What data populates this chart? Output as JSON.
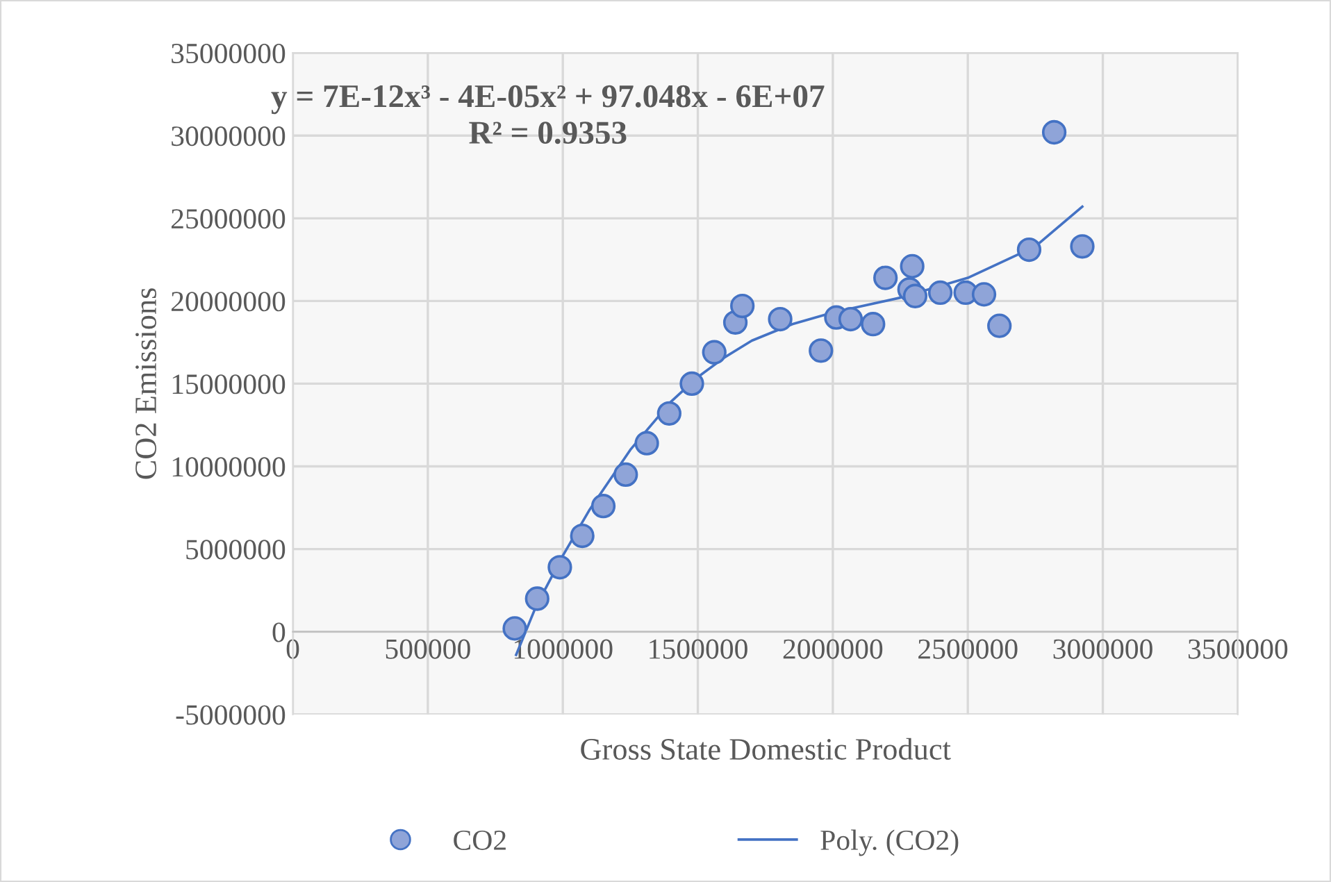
{
  "chart_data": {
    "type": "scatter",
    "xlabel": "Gross State Domestic Product",
    "ylabel": "CO2 Emissions",
    "xlim": [
      0,
      3500000
    ],
    "xticks": [
      0,
      500000,
      1000000,
      1500000,
      2000000,
      2500000,
      3000000,
      3500000
    ],
    "ylim": [
      -5000000,
      35000000
    ],
    "yticks": [
      -5000000,
      0,
      5000000,
      10000000,
      15000000,
      20000000,
      25000000,
      30000000,
      35000000
    ],
    "grid": true,
    "legend": "bottom",
    "marker": "circle",
    "annotations": [
      "y = 7E-12x³ - 4E-05x² + 97.048x - 6E+07",
      "R² = 0.9353"
    ],
    "series": [
      {
        "name": "CO2",
        "color": "#8fa4d8",
        "x": [
          822000,
          905000,
          989000,
          1072000,
          1150000,
          1233000,
          1311000,
          1394000,
          1478000,
          1561000,
          1639000,
          1665000,
          1805000,
          1956000,
          2013000,
          2066000,
          2149000,
          2195000,
          2294000,
          2284000,
          2305000,
          2398000,
          2492000,
          2560000,
          2617000,
          2727000,
          2820000,
          2924000
        ],
        "values": [
          200000,
          2000000,
          3900000,
          5800000,
          7600000,
          9500000,
          11400000,
          13200000,
          15000000,
          16900000,
          18700000,
          19700000,
          18900000,
          17000000,
          19000000,
          18900000,
          18600000,
          21400000,
          22100000,
          20700000,
          20300000,
          20500000,
          20500000,
          20400000,
          18500000,
          23100000,
          30200000,
          23300000
        ]
      },
      {
        "name": "Poly. (CO2)",
        "type": "line",
        "color": "#4472c4",
        "marker": "none",
        "x": [
          827000,
          900000,
          1000000,
          1100000,
          1250000,
          1400000,
          1500000,
          1600000,
          1700000,
          1850000,
          2000000,
          2250000,
          2500000,
          2750000,
          2924000
        ],
        "values": [
          -1400000,
          1500000,
          4600000,
          7400000,
          11000000,
          13900000,
          15400000,
          16600000,
          17600000,
          18600000,
          19300000,
          20200000,
          21400000,
          23300000,
          25700000
        ]
      }
    ]
  }
}
